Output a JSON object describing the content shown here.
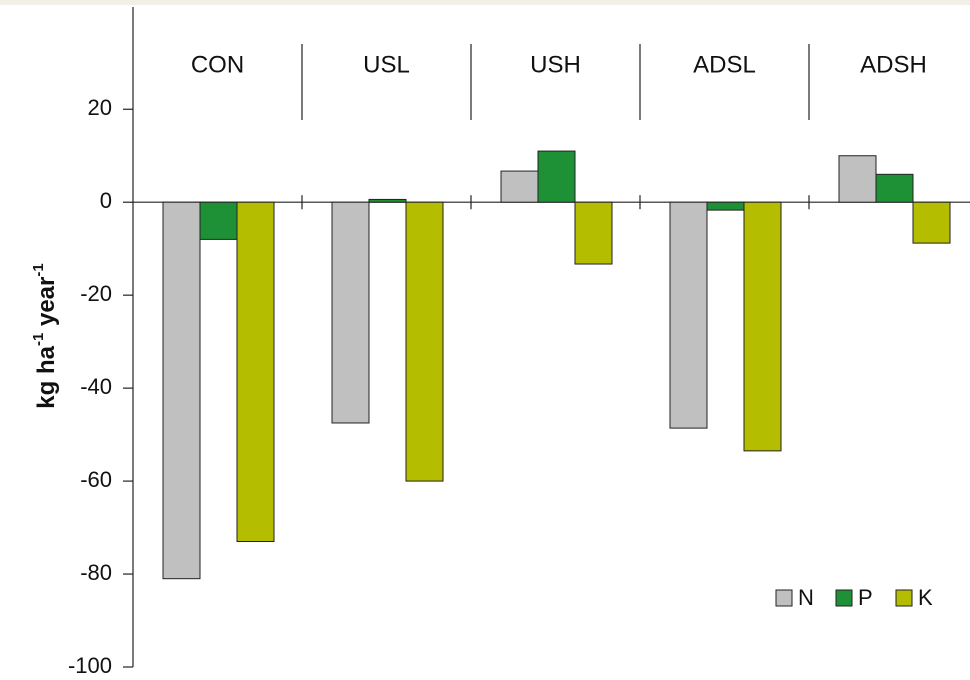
{
  "chart_data": {
    "type": "bar",
    "categories": [
      "CON",
      "USL",
      "USH",
      "ADSL",
      "ADSH"
    ],
    "series": [
      {
        "name": "N",
        "color": "#c0c0c0",
        "values": [
          -81,
          -47.5,
          6.7,
          -48.6,
          10
        ]
      },
      {
        "name": "P",
        "color": "#1e9035",
        "values": [
          -8,
          0.6,
          11,
          -1.7,
          6
        ]
      },
      {
        "name": "K",
        "color": "#b5bd00",
        "values": [
          -73,
          -60,
          -13.3,
          -53.5,
          -8.8
        ]
      }
    ],
    "ylabel": [
      "kg  ha",
      "-1",
      " year",
      "-1"
    ],
    "ylim": [
      -100,
      42
    ],
    "yticks": [
      -100,
      -80,
      -60,
      -40,
      -20,
      0,
      20
    ],
    "grid": false,
    "legend": "lower right"
  }
}
